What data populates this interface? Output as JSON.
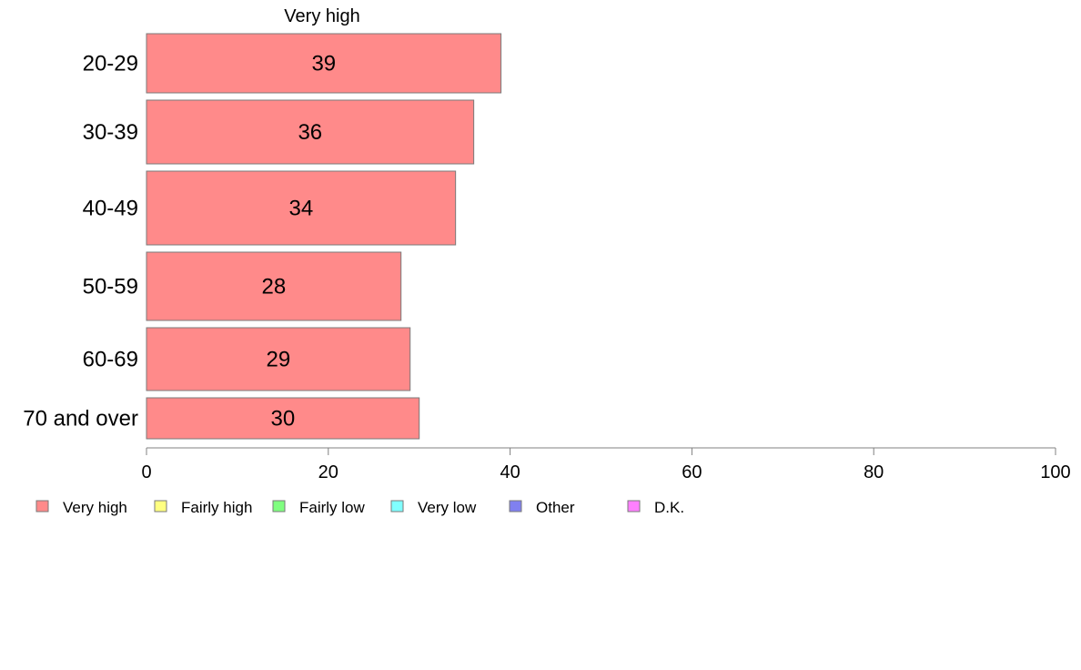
{
  "chart_data": {
    "type": "bar",
    "orientation": "horizontal",
    "stacked": true,
    "column_label": "Very high",
    "categories": [
      "20-29",
      "30-39",
      "40-49",
      "50-59",
      "60-69",
      "70 and over"
    ],
    "series": [
      {
        "name": "Very high",
        "color": "#ff8a8a",
        "values": [
          39,
          36,
          34,
          28,
          29,
          30
        ]
      }
    ],
    "xlim": [
      0,
      100
    ],
    "x_ticks": [
      0,
      20,
      40,
      60,
      80,
      100
    ],
    "grid": false,
    "legend": {
      "position": "bottom-left",
      "entries": [
        {
          "label": "Very high",
          "color": "#ff8a8a"
        },
        {
          "label": "Fairly high",
          "color": "#ffff80"
        },
        {
          "label": "Fairly low",
          "color": "#80ff80"
        },
        {
          "label": "Very low",
          "color": "#80ffff"
        },
        {
          "label": "Other",
          "color": "#8080f0"
        },
        {
          "label": "D.K.",
          "color": "#ff80ff"
        }
      ]
    }
  }
}
